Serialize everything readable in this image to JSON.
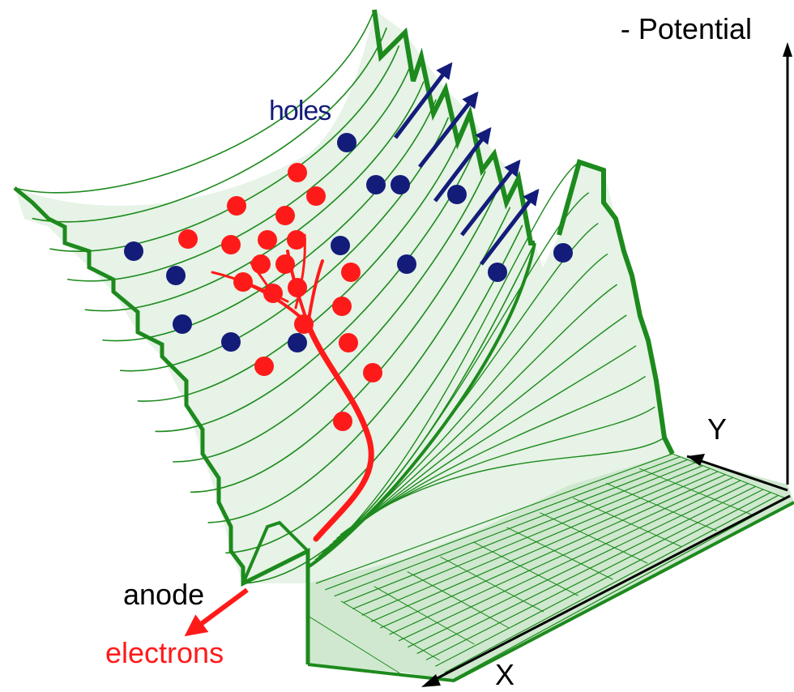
{
  "labels": {
    "potential": "- Potential",
    "y_axis": "Y",
    "x_axis": "X",
    "holes": "holes",
    "anode": "anode",
    "electrons": "electrons"
  },
  "colors": {
    "mesh": "#1d8a1d",
    "mesh_light": "#dff0df",
    "electron": "#ff1a1a",
    "hole": "#141c7a",
    "axis": "#000000",
    "text": "#000000"
  }
}
